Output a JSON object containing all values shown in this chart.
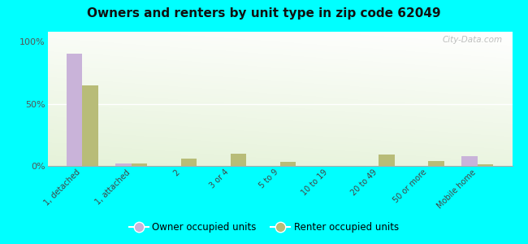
{
  "title": "Owners and renters by unit type in zip code 62049",
  "categories": [
    "1, detached",
    "1, attached",
    "2",
    "3 or 4",
    "5 to 9",
    "10 to 19",
    "20 to 49",
    "50 or more",
    "Mobile home"
  ],
  "owner_values": [
    90,
    2,
    0,
    0,
    0,
    0,
    0,
    0,
    8
  ],
  "renter_values": [
    65,
    2,
    6,
    10,
    3,
    0,
    9,
    4,
    1
  ],
  "owner_color": "#c9b3d9",
  "renter_color": "#b8bc78",
  "background_color": "#00ffff",
  "ylabel_ticks": [
    "0%",
    "50%",
    "100%"
  ],
  "ytick_values": [
    0,
    50,
    100
  ],
  "ylim": [
    0,
    108
  ],
  "bar_width": 0.32,
  "watermark": "City-Data.com",
  "legend_owner": "Owner occupied units",
  "legend_renter": "Renter occupied units"
}
